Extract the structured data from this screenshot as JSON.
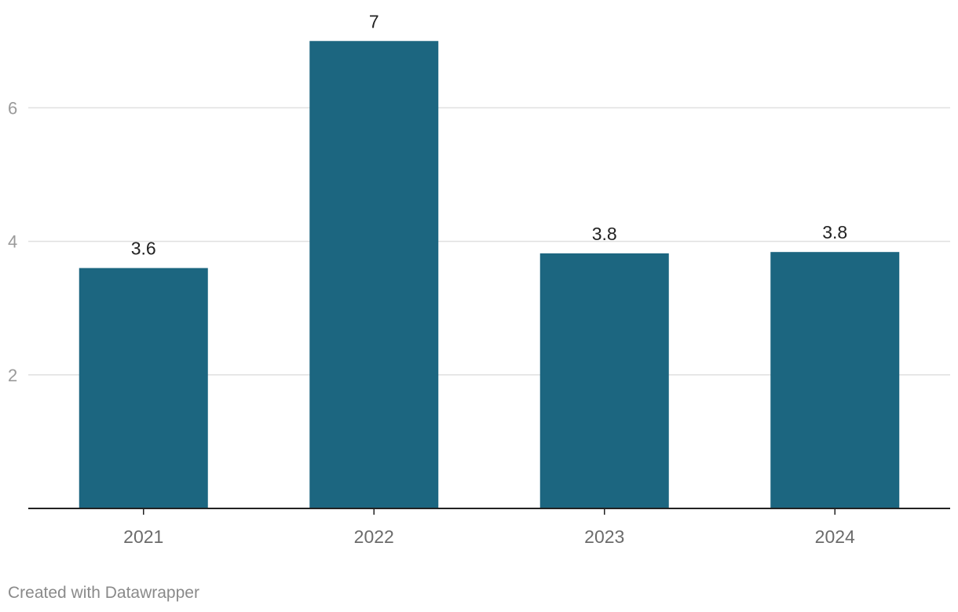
{
  "chart_data": {
    "type": "bar",
    "categories": [
      "2021",
      "2022",
      "2023",
      "2024"
    ],
    "values": [
      3.6,
      7,
      3.82,
      3.84
    ],
    "value_labels": [
      "3.6",
      "7",
      "3.8",
      "3.8"
    ],
    "y_ticks": [
      2,
      4,
      6
    ],
    "ylim": [
      0,
      7.05
    ],
    "grid": true,
    "bar_color": "#1c6680",
    "title": "",
    "xlabel": "",
    "ylabel": ""
  },
  "footer": {
    "credit": "Created with Datawrapper"
  }
}
